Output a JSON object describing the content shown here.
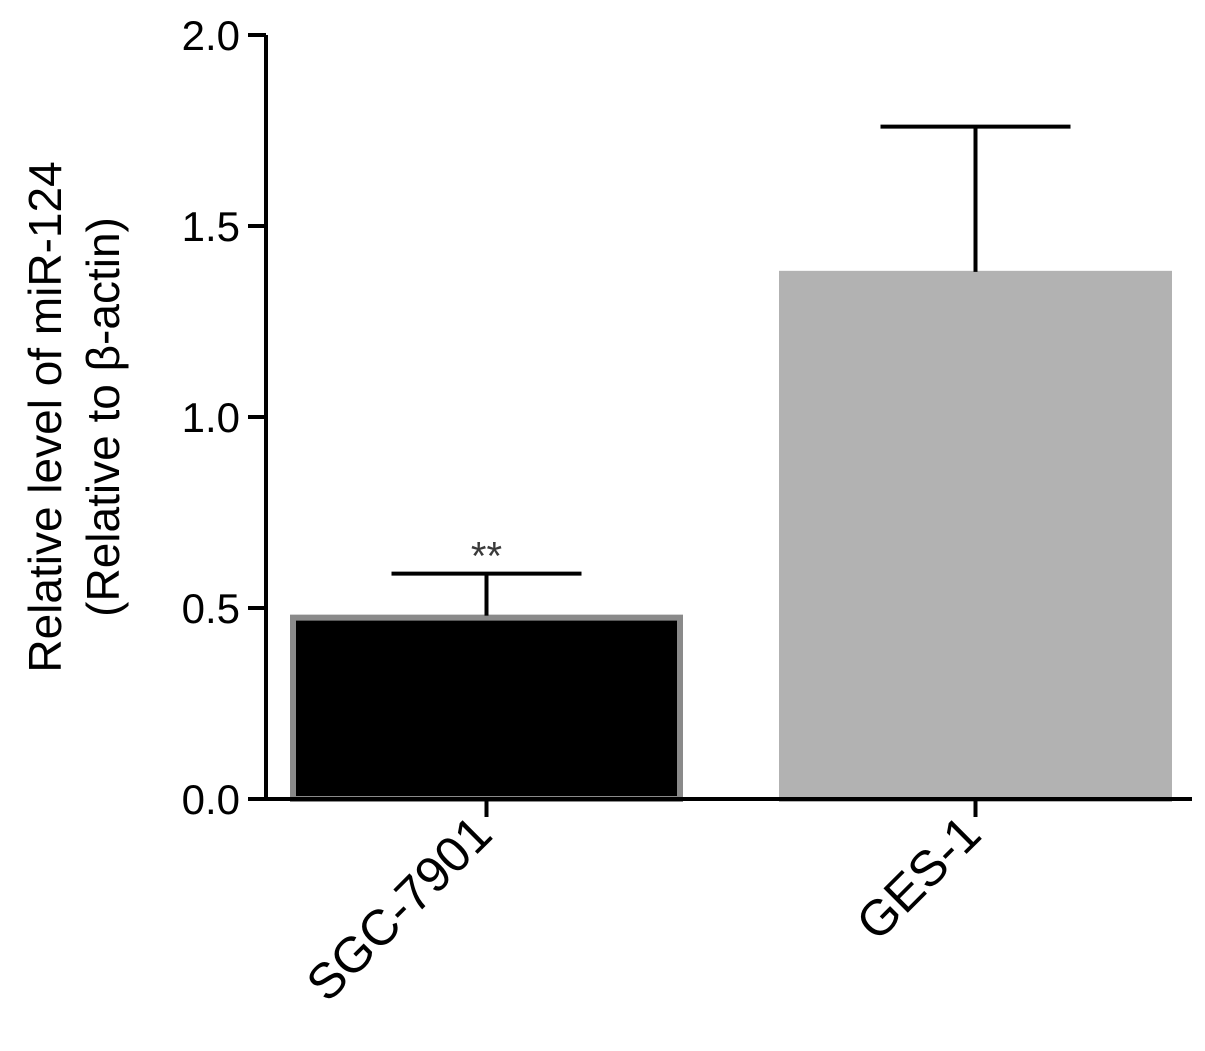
{
  "chart_data": {
    "type": "bar",
    "categories": [
      "SGC-7901",
      "GES-1"
    ],
    "values": [
      0.48,
      1.38
    ],
    "errors": [
      0.11,
      0.38
    ],
    "annotations": [
      "**",
      ""
    ],
    "colors": [
      "#000000",
      "#b2b2b2"
    ],
    "edge_colors": [
      "#8a8a8a",
      "#b2b2b2"
    ],
    "ylabel": [
      "Relative level of miR-124",
      "(Relative to β-actin)"
    ],
    "ylim": [
      0,
      2.0
    ],
    "yticks": [
      "0.0",
      "0.5",
      "1.0",
      "1.5",
      "2.0"
    ],
    "ytick_values": [
      0,
      0.5,
      1.0,
      1.5,
      2.0
    ],
    "grid": false,
    "legend": "none"
  }
}
